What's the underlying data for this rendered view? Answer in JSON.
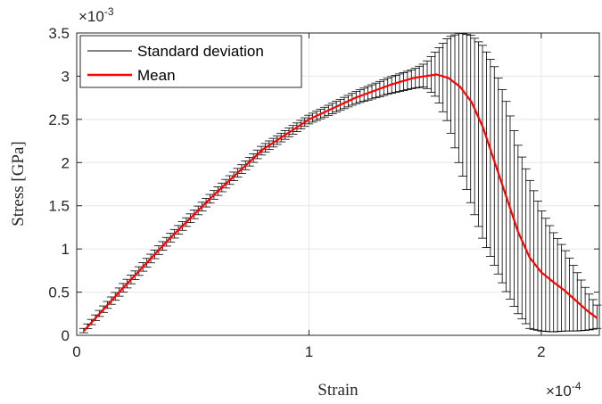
{
  "chart_data": {
    "type": "line",
    "xlabel": "Strain",
    "ylabel": "Stress [GPa]",
    "x_multiplier_base": "×10",
    "x_multiplier_exp": "-4",
    "y_multiplier_base": "×10",
    "y_multiplier_exp": "-3",
    "xlim": [
      0,
      2.25
    ],
    "ylim": [
      0,
      3.5
    ],
    "x_ticks": [
      0,
      1,
      2
    ],
    "x_tick_labels": [
      "0",
      "1",
      "2"
    ],
    "y_ticks": [
      0,
      0.5,
      1,
      1.5,
      2,
      2.5,
      3,
      3.5
    ],
    "y_tick_labels": [
      "0",
      "0.5",
      "1",
      "1.5",
      "2",
      "2.5",
      "3",
      "3.5"
    ],
    "grid": true,
    "legend_position": "top-left",
    "colors": {
      "mean": "#ff0000",
      "std": "#000000",
      "grid": "#e6e6e6",
      "axis": "#262626"
    },
    "series": [
      {
        "name": "Mean",
        "x": [
          0.03,
          0.2,
          0.4,
          0.6,
          0.8,
          1.0,
          1.2,
          1.35,
          1.45,
          1.5,
          1.55,
          1.6,
          1.65,
          1.7,
          1.75,
          1.8,
          1.85,
          1.9,
          1.95,
          2.0,
          2.05,
          2.1,
          2.15,
          2.2,
          2.24
        ],
        "y": [
          0.05,
          0.55,
          1.12,
          1.65,
          2.15,
          2.5,
          2.75,
          2.9,
          2.98,
          3.0,
          3.02,
          2.98,
          2.88,
          2.7,
          2.4,
          2.0,
          1.6,
          1.2,
          0.9,
          0.73,
          0.62,
          0.52,
          0.4,
          0.28,
          0.2
        ]
      },
      {
        "name": "Standard deviation",
        "x": [
          0.03,
          0.2,
          0.4,
          0.6,
          0.8,
          1.0,
          1.2,
          1.35,
          1.45,
          1.5,
          1.55,
          1.6,
          1.65,
          1.7,
          1.75,
          1.8,
          1.85,
          1.9,
          1.95,
          2.0,
          2.05,
          2.1,
          2.15,
          2.2,
          2.24
        ],
        "lower": [
          0.03,
          0.5,
          1.07,
          1.6,
          2.1,
          2.45,
          2.68,
          2.8,
          2.86,
          2.88,
          2.75,
          2.45,
          1.95,
          1.5,
          1.1,
          0.8,
          0.5,
          0.25,
          0.08,
          0.05,
          0.04,
          0.05,
          0.05,
          0.06,
          0.08
        ],
        "upper": [
          0.08,
          0.6,
          1.17,
          1.7,
          2.2,
          2.55,
          2.82,
          2.99,
          3.08,
          3.15,
          3.3,
          3.45,
          3.5,
          3.47,
          3.35,
          3.1,
          2.7,
          2.2,
          1.8,
          1.45,
          1.2,
          1.0,
          0.75,
          0.5,
          0.35
        ]
      }
    ]
  }
}
